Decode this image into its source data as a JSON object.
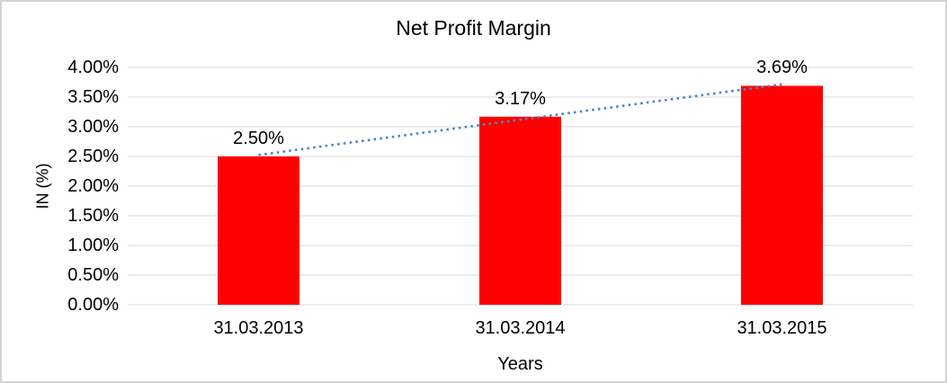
{
  "window": {
    "background": "#ffffff",
    "border_color": "#d3d3d3"
  },
  "chart_data": {
    "type": "bar",
    "title": "Net Profit Margin",
    "xlabel": "Years",
    "ylabel": "IN (%)",
    "categories": [
      "31.03.2013",
      "31.03.2014",
      "31.03.2015"
    ],
    "values": [
      2.5,
      3.17,
      3.69
    ],
    "data_labels": [
      "2.50%",
      "3.17%",
      "3.69%"
    ],
    "ylim": [
      0,
      4
    ],
    "ytick_step": 0.5,
    "ytick_labels": [
      "0.00%",
      "0.50%",
      "1.00%",
      "1.50%",
      "2.00%",
      "2.50%",
      "3.00%",
      "3.50%",
      "4.00%"
    ],
    "grid": true,
    "legend_position": "none",
    "bar_color": "#ff0000",
    "gridline_color": "#d9d9d9",
    "text_color": "#000000",
    "trendline": {
      "type": "linear",
      "style": "dotted",
      "color": "#4a86c8"
    }
  }
}
